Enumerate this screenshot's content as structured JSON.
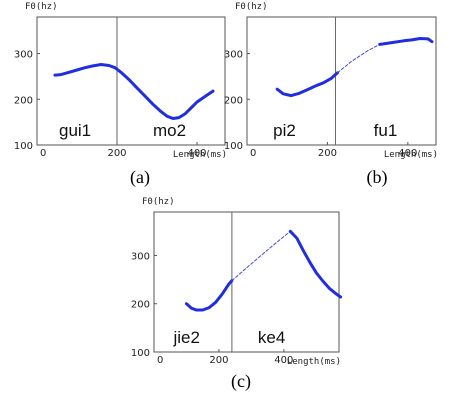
{
  "chart_data": [
    {
      "type": "line",
      "caption": "(a)",
      "ylabel": "F0(hz)",
      "xlabel": "Length(ms)",
      "x_ticks": [
        "0",
        "200",
        "400"
      ],
      "y_ticks": [
        "100",
        "200",
        "300"
      ],
      "xlim": [
        0,
        470
      ],
      "ylim": [
        100,
        380
      ],
      "boundary_ms": 200,
      "syllables": [
        {
          "label": "gui1",
          "x": 55
        },
        {
          "label": "mo2",
          "x": 290
        }
      ],
      "series": [
        {
          "style": "solid",
          "x": [
            45,
            60,
            80,
            100,
            120,
            140,
            160,
            180,
            195,
            210,
            230,
            250,
            270,
            290,
            310,
            325,
            340,
            355,
            370,
            385,
            400,
            420,
            440
          ],
          "y": [
            253,
            254,
            259,
            264,
            269,
            273,
            276,
            274,
            269,
            259,
            243,
            225,
            207,
            189,
            173,
            163,
            158,
            160,
            168,
            181,
            194,
            206,
            218
          ]
        }
      ]
    },
    {
      "type": "line",
      "caption": "(b)",
      "ylabel": "F0(hz)",
      "xlabel": "Length(ms)",
      "x_ticks": [
        "0",
        "200",
        "400"
      ],
      "y_ticks": [
        "100",
        "200",
        "300"
      ],
      "xlim": [
        0,
        470
      ],
      "ylim": [
        100,
        380
      ],
      "boundary_ms": 220,
      "syllables": [
        {
          "label": "pi2",
          "x": 65
        },
        {
          "label": "fu1",
          "x": 315
        }
      ],
      "series": [
        {
          "style": "solid",
          "x": [
            75,
            90,
            110,
            130,
            150,
            170,
            190,
            210,
            225
          ],
          "y": [
            222,
            212,
            208,
            213,
            221,
            229,
            236,
            246,
            258
          ]
        },
        {
          "style": "dashed",
          "x": [
            225,
            260,
            300,
            330
          ],
          "y": [
            258,
            283,
            306,
            320
          ]
        },
        {
          "style": "solid",
          "x": [
            330,
            360,
            390,
            410,
            430,
            450,
            460
          ],
          "y": [
            320,
            324,
            328,
            330,
            333,
            332,
            326
          ]
        }
      ]
    },
    {
      "type": "line",
      "caption": "(c)",
      "ylabel": "F0(hz)",
      "xlabel": "Length(ms)",
      "x_ticks": [
        "0",
        "200",
        "400"
      ],
      "y_ticks": [
        "100",
        "200",
        "300"
      ],
      "xlim": [
        0,
        570
      ],
      "ylim": [
        100,
        390
      ],
      "boundary_ms": 240,
      "syllables": [
        {
          "label": "jie2",
          "x": 60
        },
        {
          "label": "ke4",
          "x": 320
        }
      ],
      "series": [
        {
          "style": "solid",
          "x": [
            100,
            115,
            130,
            150,
            170,
            190,
            210,
            230,
            240
          ],
          "y": [
            200,
            191,
            187,
            187,
            192,
            203,
            220,
            240,
            248
          ]
        },
        {
          "style": "dashed",
          "x": [
            240,
            300,
            360,
            420
          ],
          "y": [
            248,
            283,
            317,
            350
          ]
        },
        {
          "style": "solid",
          "x": [
            420,
            440,
            460,
            480,
            500,
            520,
            540,
            560,
            575
          ],
          "y": [
            350,
            336,
            310,
            286,
            264,
            247,
            232,
            221,
            214
          ]
        }
      ]
    }
  ]
}
